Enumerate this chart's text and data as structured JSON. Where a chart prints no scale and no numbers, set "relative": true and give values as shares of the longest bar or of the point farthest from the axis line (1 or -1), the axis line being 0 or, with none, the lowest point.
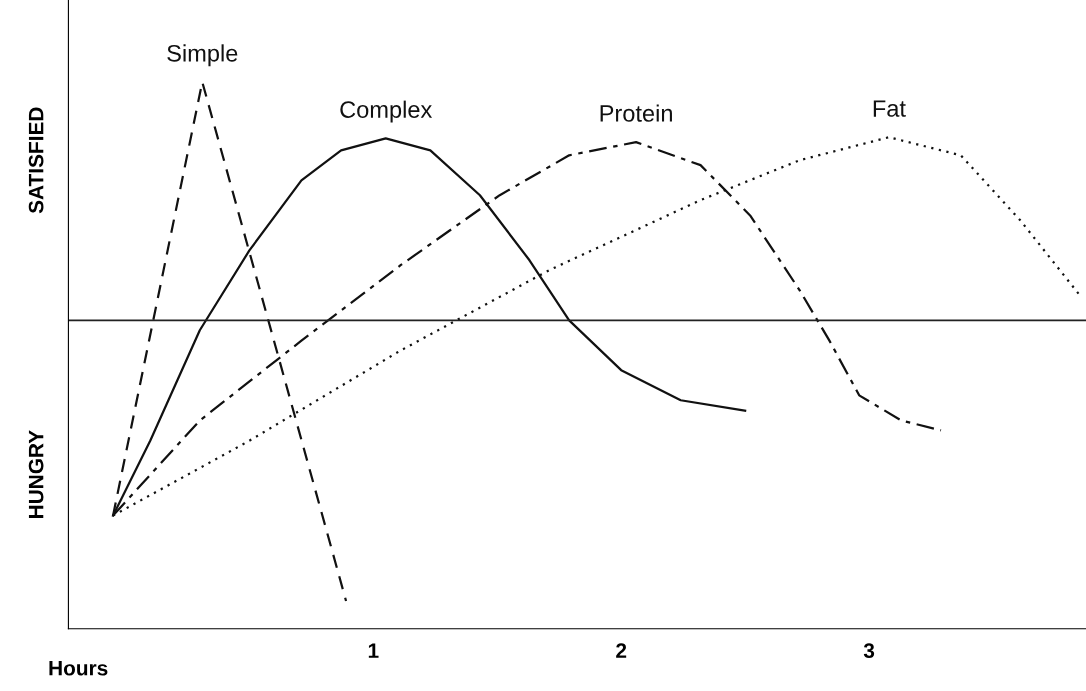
{
  "chart_data": {
    "type": "line",
    "relative": true,
    "xlabel": "Hours",
    "xlim": [
      -0.23,
      3.875
    ],
    "xticks": [
      1,
      2,
      3
    ],
    "grid": false,
    "legend": false,
    "marker": "none",
    "ref_lines": [
      {
        "axis": "y",
        "value": 0.564,
        "color": "#222222",
        "line_style": "solid"
      }
    ],
    "annotations": [
      "SATISFIED",
      "HUNGRY"
    ],
    "series": [
      {
        "name": "Simple",
        "color": "#111111",
        "line_style": "dashed",
        "x": [
          -0.05,
          0.31,
          0.89
        ],
        "values": [
          0.207,
          1.0,
          0.051
        ]
      },
      {
        "name": "Complex",
        "color": "#111111",
        "line_style": "solid",
        "x": [
          -0.05,
          0.1,
          0.3,
          0.5,
          0.71,
          0.87,
          1.05,
          1.23,
          1.43,
          1.63,
          1.79,
          2.0,
          2.24,
          2.5
        ],
        "values": [
          0.207,
          0.344,
          0.546,
          0.692,
          0.82,
          0.875,
          0.897,
          0.875,
          0.793,
          0.674,
          0.564,
          0.473,
          0.418,
          0.399
        ]
      },
      {
        "name": "Protein",
        "color": "#111111",
        "line_style": "dashdot",
        "x": [
          -0.05,
          0.3,
          0.71,
          1.11,
          1.51,
          1.79,
          2.06,
          2.32,
          2.52,
          2.72,
          2.84,
          2.96,
          3.13,
          3.29
        ],
        "values": [
          0.207,
          0.381,
          0.527,
          0.665,
          0.793,
          0.866,
          0.89,
          0.848,
          0.756,
          0.619,
          0.527,
          0.427,
          0.381,
          0.363
        ]
      },
      {
        "name": "Fat",
        "color": "#111111",
        "line_style": "dotted",
        "x": [
          -0.05,
          0.5,
          1.11,
          1.71,
          2.32,
          2.72,
          3.08,
          3.37,
          3.61,
          3.85
        ],
        "values": [
          0.207,
          0.344,
          0.509,
          0.656,
          0.784,
          0.857,
          0.899,
          0.866,
          0.747,
          0.61
        ]
      }
    ]
  }
}
